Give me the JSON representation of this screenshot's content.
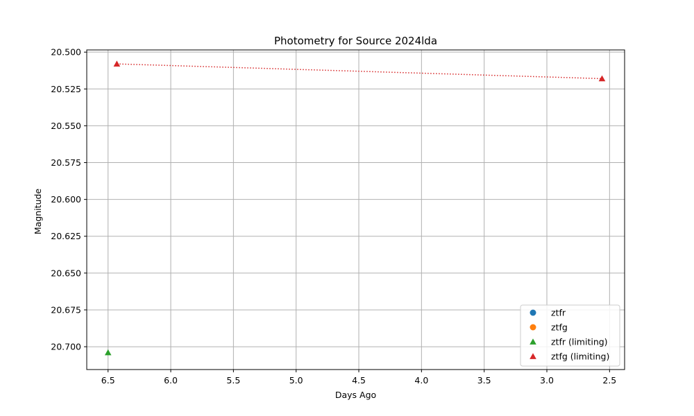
{
  "chart_data": {
    "type": "scatter",
    "title": "Photometry for Source 2024lda",
    "xlabel": "Days Ago",
    "ylabel": "Magnitude",
    "xlim": [
      6.67,
      2.38
    ],
    "ylim": [
      20.7155,
      20.4985
    ],
    "x_inverted": true,
    "y_inverted": true,
    "grid": true,
    "xticks": [
      6.5,
      6.0,
      5.5,
      5.0,
      4.5,
      4.0,
      3.5,
      3.0,
      2.5
    ],
    "xtick_labels": [
      "6.5",
      "6.0",
      "5.5",
      "5.0",
      "4.5",
      "4.0",
      "3.5",
      "3.0",
      "2.5"
    ],
    "yticks": [
      20.5,
      20.525,
      20.55,
      20.575,
      20.6,
      20.625,
      20.65,
      20.675,
      20.7
    ],
    "ytick_labels": [
      "20.500",
      "20.525",
      "20.550",
      "20.575",
      "20.600",
      "20.625",
      "20.650",
      "20.675",
      "20.700"
    ],
    "legend_position": "lower-right",
    "series": [
      {
        "name": "ztfr",
        "marker": "circle",
        "color": "#1f77b4",
        "x": [],
        "y": []
      },
      {
        "name": "ztfg",
        "marker": "circle",
        "color": "#ff7f0e",
        "x": [],
        "y": []
      },
      {
        "name": "ztfr (limiting)",
        "marker": "triangle",
        "color": "#2ca02c",
        "x": [
          6.5
        ],
        "y": [
          20.704
        ],
        "line": false
      },
      {
        "name": "ztfg (limiting)",
        "marker": "triangle",
        "color": "#d62728",
        "x": [
          6.43,
          2.56
        ],
        "y": [
          20.508,
          20.518
        ],
        "line": "dotted"
      }
    ]
  }
}
